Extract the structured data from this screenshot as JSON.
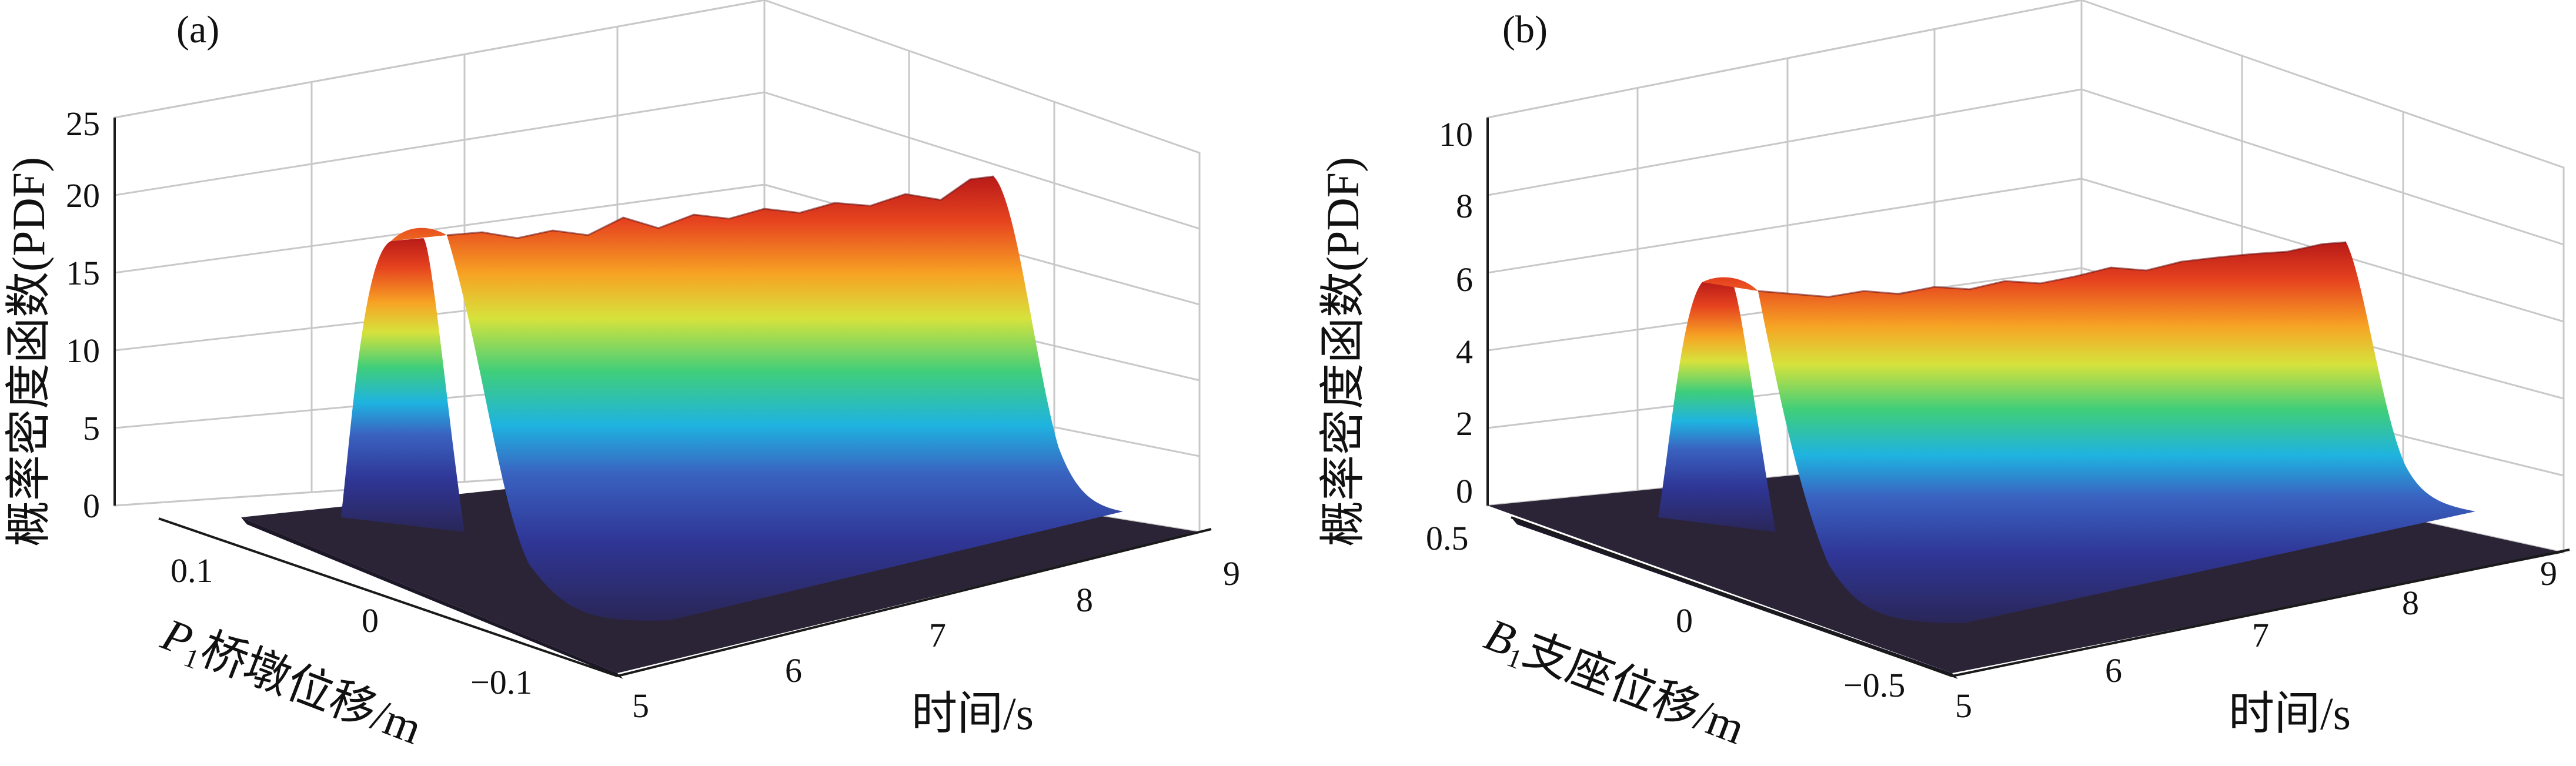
{
  "chart_data": [
    {
      "type": "surface",
      "panel_label": "(a)",
      "zlabel": "概率密度函数(PDF)",
      "xlabel": "时间/s",
      "ylabel_pre": "P",
      "ylabel_sub": "1",
      "ylabel_post": "桥墩位移/m",
      "x_ticks": [
        "5",
        "6",
        "7",
        "8",
        "9"
      ],
      "y_ticks": [
        "0.1",
        "0",
        "−0.1"
      ],
      "z_ticks": [
        "0",
        "5",
        "10",
        "15",
        "20",
        "25"
      ],
      "xlim": [
        5,
        9
      ],
      "ylim": [
        -0.15,
        0.15
      ],
      "zlim": [
        0,
        25
      ],
      "peak_z": 18.5,
      "ridge_center_y": 0,
      "ridge_halfwidth_y": 0.035,
      "colormap": [
        "#1e1a3e",
        "#2b2b8a",
        "#3b58b8",
        "#22aadd",
        "#3fd07a",
        "#cde23a",
        "#f6a623",
        "#e8441e",
        "#c81818"
      ]
    },
    {
      "type": "surface",
      "panel_label": "(b)",
      "zlabel": "概率密度函数(PDF)",
      "xlabel": "时间/s",
      "ylabel_pre": "B",
      "ylabel_sub": "1",
      "ylabel_post": "支座位移/m",
      "x_ticks": [
        "5",
        "6",
        "7",
        "8",
        "9"
      ],
      "y_ticks": [
        "0.5",
        "0",
        "−0.5"
      ],
      "z_ticks": [
        "0",
        "2",
        "4",
        "6",
        "8",
        "10"
      ],
      "xlim": [
        5,
        9
      ],
      "ylim": [
        -0.6,
        0.6
      ],
      "zlim": [
        0,
        10
      ],
      "peak_z": 6.3,
      "ridge_center_y": 0,
      "ridge_halfwidth_y": 0.15,
      "colormap": [
        "#1e1a3e",
        "#2b2b8a",
        "#3b58b8",
        "#22aadd",
        "#3fd07a",
        "#cde23a",
        "#f6a623",
        "#e8441e",
        "#c81818"
      ]
    }
  ]
}
